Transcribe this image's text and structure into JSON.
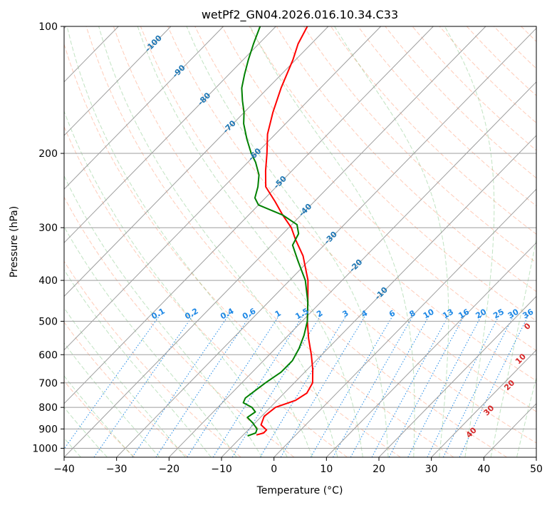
{
  "chart_data": {
    "type": "line",
    "chart_kind": "skew-T log-P diagram",
    "title": "wetPf2_GN04.2026.016.10.34.C33",
    "xlabel": "Temperature (°C)",
    "ylabel": "Pressure (hPa)",
    "xlim": [
      -40,
      50
    ],
    "ylim": [
      1050,
      100
    ],
    "x_ticks": [
      -40,
      -30,
      -20,
      -10,
      0,
      10,
      20,
      30,
      40,
      50
    ],
    "y_ticks": [
      100,
      200,
      300,
      400,
      500,
      600,
      700,
      800,
      900,
      1000
    ],
    "series": [
      {
        "name": "temperature",
        "color": "#ff0000",
        "points": [
          {
            "p": 930,
            "t": -7.5
          },
          {
            "p": 920,
            "t": -6.5
          },
          {
            "p": 905,
            "t": -6.5
          },
          {
            "p": 880,
            "t": -8.5
          },
          {
            "p": 840,
            "t": -9.5
          },
          {
            "p": 800,
            "t": -9.0
          },
          {
            "p": 770,
            "t": -6.5
          },
          {
            "p": 740,
            "t": -5.7
          },
          {
            "p": 700,
            "t": -6.5
          },
          {
            "p": 650,
            "t": -9.0
          },
          {
            "p": 600,
            "t": -12.0
          },
          {
            "p": 550,
            "t": -15.5
          },
          {
            "p": 500,
            "t": -19.0
          },
          {
            "p": 450,
            "t": -22.5
          },
          {
            "p": 400,
            "t": -26.5
          },
          {
            "p": 350,
            "t": -32.0
          },
          {
            "p": 320,
            "t": -36.5
          },
          {
            "p": 300,
            "t": -39.5
          },
          {
            "p": 280,
            "t": -43.5
          },
          {
            "p": 260,
            "t": -47.5
          },
          {
            "p": 240,
            "t": -52.0
          },
          {
            "p": 220,
            "t": -55.0
          },
          {
            "p": 200,
            "t": -58.0
          },
          {
            "p": 180,
            "t": -61.5
          },
          {
            "p": 160,
            "t": -64.5
          },
          {
            "p": 140,
            "t": -67.5
          },
          {
            "p": 120,
            "t": -70.5
          },
          {
            "p": 110,
            "t": -72.5
          },
          {
            "p": 100,
            "t": -74.0
          }
        ]
      },
      {
        "name": "dewpoint",
        "color": "#008000",
        "points": [
          {
            "p": 935,
            "t": -9.0
          },
          {
            "p": 920,
            "t": -8.0
          },
          {
            "p": 900,
            "t": -8.5
          },
          {
            "p": 870,
            "t": -10.5
          },
          {
            "p": 845,
            "t": -12.5
          },
          {
            "p": 820,
            "t": -12.0
          },
          {
            "p": 800,
            "t": -13.5
          },
          {
            "p": 780,
            "t": -16.0
          },
          {
            "p": 760,
            "t": -16.5
          },
          {
            "p": 730,
            "t": -16.0
          },
          {
            "p": 700,
            "t": -15.5
          },
          {
            "p": 660,
            "t": -14.5
          },
          {
            "p": 620,
            "t": -14.5
          },
          {
            "p": 580,
            "t": -15.5
          },
          {
            "p": 540,
            "t": -17.0
          },
          {
            "p": 500,
            "t": -19.0
          },
          {
            "p": 450,
            "t": -22.5
          },
          {
            "p": 400,
            "t": -27.0
          },
          {
            "p": 360,
            "t": -32.0
          },
          {
            "p": 330,
            "t": -36.0
          },
          {
            "p": 310,
            "t": -37.0
          },
          {
            "p": 295,
            "t": -39.0
          },
          {
            "p": 280,
            "t": -43.5
          },
          {
            "p": 265,
            "t": -50.0
          },
          {
            "p": 255,
            "t": -52.0
          },
          {
            "p": 240,
            "t": -53.5
          },
          {
            "p": 225,
            "t": -55.5
          },
          {
            "p": 210,
            "t": -58.5
          },
          {
            "p": 200,
            "t": -61.0
          },
          {
            "p": 185,
            "t": -64.5
          },
          {
            "p": 170,
            "t": -68.0
          },
          {
            "p": 160,
            "t": -70.0
          },
          {
            "p": 150,
            "t": -72.5
          },
          {
            "p": 140,
            "t": -75.0
          },
          {
            "p": 130,
            "t": -77.0
          },
          {
            "p": 120,
            "t": -79.0
          },
          {
            "p": 110,
            "t": -81.0
          },
          {
            "p": 100,
            "t": -83.0
          }
        ]
      }
    ],
    "reference_lines": {
      "isotherms_color": "#9e9e9e",
      "dry_adiabats_color": "#ff7f50",
      "moist_adiabats_color": "#4caf50",
      "mixing_ratio_color": "#1e88e5",
      "dry_adiabat_labels": [
        "-100",
        "-90",
        "-80",
        "-70",
        "-60",
        "-50",
        "-40",
        "-30",
        "-20",
        "-10"
      ],
      "mixing_ratio_labels": [
        "0.1",
        "0.2",
        "0.4",
        "0.6",
        "1",
        "1.5",
        "2",
        "3",
        "4",
        "6",
        "8",
        "10",
        "13",
        "16",
        "20",
        "25",
        "30",
        "36"
      ],
      "mixing_ratio_values": [
        0.1,
        0.2,
        0.4,
        0.6,
        1,
        1.5,
        2,
        3,
        4,
        6,
        8,
        10,
        13,
        16,
        20,
        25,
        30,
        36
      ],
      "moist_adiabat_labels": [
        "0",
        "10",
        "20",
        "30",
        "40"
      ]
    }
  }
}
